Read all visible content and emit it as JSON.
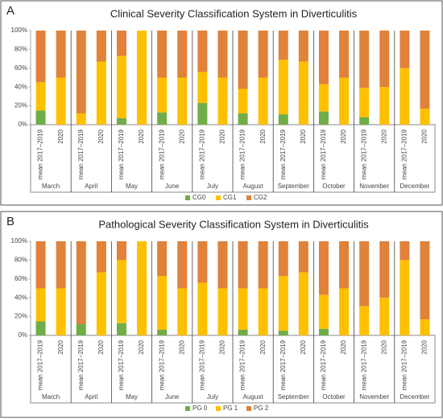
{
  "chart_data": [
    {
      "type": "bar",
      "stacked": true,
      "panel": "A",
      "title": "Clinical Severity Classification System in Diverticulitis",
      "groups": [
        "March",
        "April",
        "May",
        "June",
        "July",
        "August",
        "September",
        "October",
        "November",
        "December"
      ],
      "categories": [
        "mean 2017–2019",
        "2020",
        "mean 2017–2019",
        "2020",
        "mean 2017–2019",
        "2020",
        "mean 2017–2019",
        "2020",
        "mean 2017–2019",
        "2020",
        "mean 2017–2019",
        "2020",
        "mean 2017–2019",
        "2020",
        "mean 2017–2019",
        "2020",
        "mean 2017–2019",
        "2020",
        "mean 2017–2019",
        "2020"
      ],
      "series": [
        {
          "name": "CG0",
          "color": "#70ad47",
          "values": [
            15,
            0,
            0,
            0,
            7,
            0,
            13,
            0,
            23,
            0,
            12,
            0,
            11,
            0,
            14,
            0,
            8,
            0,
            0,
            0
          ]
        },
        {
          "name": "CG1",
          "color": "#ffc000",
          "values": [
            30,
            50,
            12,
            67,
            66,
            100,
            37,
            50,
            33,
            50,
            26,
            50,
            58,
            67,
            29,
            50,
            31,
            40,
            60,
            17
          ]
        },
        {
          "name": "CG2",
          "color": "#e0823a",
          "values": [
            55,
            50,
            88,
            33,
            27,
            0,
            50,
            50,
            44,
            50,
            62,
            50,
            31,
            33,
            57,
            50,
            61,
            60,
            40,
            83
          ]
        }
      ],
      "ylim": [
        0,
        100
      ],
      "yticks": [
        {
          "value": 0,
          "label": "0%"
        },
        {
          "value": 20,
          "label": "20%"
        },
        {
          "value": 40,
          "label": "40%"
        },
        {
          "value": 60,
          "label": "60%"
        },
        {
          "value": 80,
          "label": "80%"
        },
        {
          "value": 100,
          "label": "100%"
        }
      ],
      "legend": "bottom"
    },
    {
      "type": "bar",
      "stacked": true,
      "panel": "B",
      "title": "Pathological Severity Classification System in Diverticulitis",
      "groups": [
        "March",
        "April",
        "May",
        "June",
        "July",
        "August",
        "September",
        "October",
        "November",
        "December"
      ],
      "categories": [
        "mean 2017–2019",
        "2020",
        "mean 2017–2019",
        "2020",
        "mean 2017–2019",
        "2020",
        "mean 2017–2019",
        "2020",
        "mean 2017–2019",
        "2020",
        "mean 2017–2019",
        "2020",
        "mean 2017–2019",
        "2020",
        "mean 2017–2019",
        "2020",
        "mean 2017–2019",
        "2020",
        "mean 2017–2019",
        "2020"
      ],
      "series": [
        {
          "name": "PG 0",
          "color": "#70ad47",
          "values": [
            15,
            0,
            12,
            0,
            13,
            0,
            6,
            0,
            0,
            0,
            6,
            0,
            5,
            0,
            7,
            0,
            0,
            0,
            0,
            0
          ]
        },
        {
          "name": "PG 1",
          "color": "#ffc000",
          "values": [
            35,
            50,
            0,
            67,
            67,
            100,
            57,
            50,
            56,
            50,
            44,
            50,
            58,
            67,
            36,
            50,
            31,
            40,
            80,
            17
          ]
        },
        {
          "name": "PG 2",
          "color": "#e0823a",
          "values": [
            50,
            50,
            88,
            33,
            20,
            0,
            37,
            50,
            44,
            50,
            50,
            50,
            37,
            33,
            57,
            50,
            69,
            60,
            20,
            83
          ]
        }
      ],
      "ylim": [
        0,
        100
      ],
      "yticks": [
        {
          "value": 0,
          "label": "0%"
        },
        {
          "value": 20,
          "label": "20%"
        },
        {
          "value": 40,
          "label": "40%"
        },
        {
          "value": 60,
          "label": "60%"
        },
        {
          "value": 80,
          "label": "80%"
        },
        {
          "value": 100,
          "label": "100%"
        }
      ],
      "legend": "bottom"
    }
  ]
}
